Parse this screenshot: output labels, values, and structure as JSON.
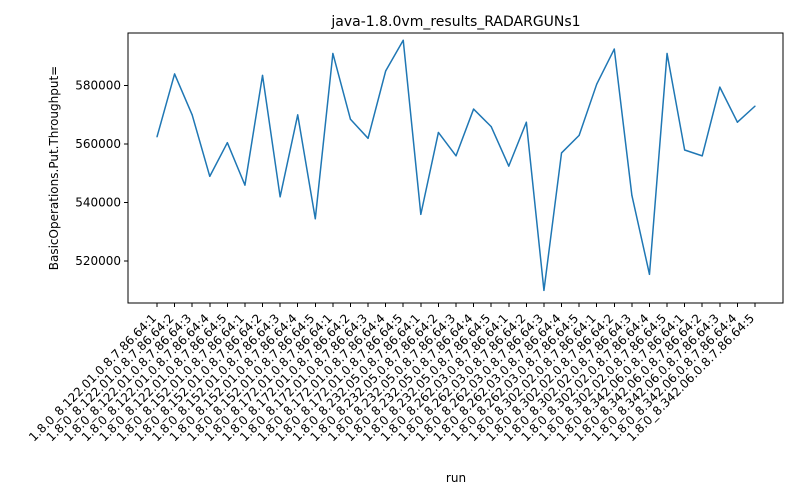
{
  "chart_data": {
    "type": "line",
    "title": "java-1.8.0vm_results_RADARGUNs1",
    "xlabel": "run",
    "ylabel": "BasicOperations.Put.Throughput=",
    "categories": [
      "1.8.0_8.122.01.0.8.7.86.64:1",
      "1.8.0_8.122.01.0.8.7.86.64:2",
      "1.8.0_8.122.01.0.8.7.86.64:3",
      "1.8.0_8.122.01.0.8.7.86.64:4",
      "1.8.0_8.122.01.0.8.7.86.64:5",
      "1.8.0_8.152.01.0.8.7.86.64:1",
      "1.8.0_8.152.01.0.8.7.86.64:2",
      "1.8.0_8.152.01.0.8.7.86.64:3",
      "1.8.0_8.152.01.0.8.7.86.64:4",
      "1.8.0_8.152.01.0.8.7.86.64:5",
      "1.8.0_8.172.01.0.8.7.86.64:1",
      "1.8.0_8.172.01.0.8.7.86.64:2",
      "1.8.0_8.172.01.0.8.7.86.64:3",
      "1.8.0_8.172.01.0.8.7.86.64:4",
      "1.8.0_8.172.01.0.8.7.86.64:5",
      "1.8.0_8.232.05.0.8.7.86.64:1",
      "1.8.0_8.232.05.0.8.7.86.64:2",
      "1.8.0_8.232.05.0.8.7.86.64:3",
      "1.8.0_8.232.05.0.8.7.86.64:4",
      "1.8.0_8.232.05.0.8.7.86.64:5",
      "1.8.0_8.262.03.0.8.7.86.64:1",
      "1.8.0_8.262.03.0.8.7.86.64:2",
      "1.8.0_8.262.03.0.8.7.86.64:3",
      "1.8.0_8.262.03.0.8.7.86.64:4",
      "1.8.0_8.262.03.0.8.7.86.64:5",
      "1.8.0_8.302.02.0.8.7.86.64:1",
      "1.8.0_8.302.02.0.8.7.86.64:2",
      "1.8.0_8.302.02.0.8.7.86.64:3",
      "1.8.0_8.302.02.0.8.7.86.64:4",
      "1.8.0_8.302.02.0.8.7.86.64:5",
      "1.8.0_8.342.06.0.8.7.86.64:1",
      "1.8.0_8.342.06.0.8.7.86.64:2",
      "1.8.0_8.342.06.0.8.7.86.64:3",
      "1.8.0_8.342.06.0.8.7.86.64:4",
      "1.8.0_8.342.06.0.8.7.86.64:5"
    ],
    "series": [
      {
        "color": "#1f77b4",
        "values": [
          562500,
          584000,
          570000,
          549000,
          560500,
          546000,
          583500,
          542000,
          570000,
          534500,
          591000,
          568500,
          562000,
          585000,
          595500,
          536000,
          564000,
          556000,
          572000,
          566000,
          552500,
          567500,
          510000,
          557000,
          563000,
          580500,
          592500,
          542500,
          515500,
          591000,
          558000,
          556000,
          579500,
          567500,
          573000
        ]
      }
    ],
    "ylim": [
      505700,
      598000
    ],
    "yticks": [
      520000,
      540000,
      560000,
      580000
    ],
    "ytick_labels": [
      "520000",
      "540000",
      "560000",
      "580000"
    ],
    "grid": false,
    "legend": "none"
  }
}
